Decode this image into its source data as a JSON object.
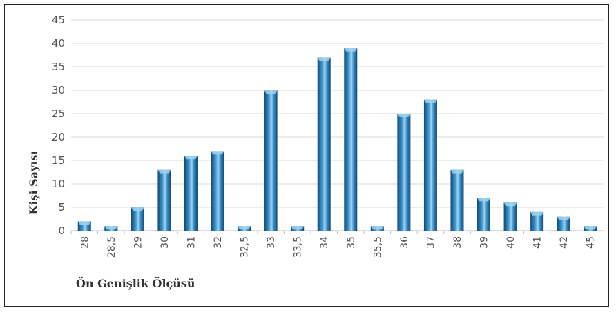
{
  "chart_data": {
    "type": "bar",
    "title": "",
    "xlabel": "Ön Genişlik Ölçüsü",
    "ylabel": "Kişi Sayısı",
    "ylim": [
      0,
      45
    ],
    "yticks": [
      0,
      5,
      10,
      15,
      20,
      25,
      30,
      35,
      40,
      45
    ],
    "grid": true,
    "legend": "none",
    "categories": [
      "28",
      "28,5",
      "29",
      "30",
      "31",
      "32",
      "32,5",
      "33",
      "33,5",
      "34",
      "35",
      "35,5",
      "36",
      "37",
      "38",
      "39",
      "40",
      "41",
      "42",
      "45"
    ],
    "values": [
      2,
      1,
      5,
      13,
      16,
      17,
      1,
      30,
      1,
      37,
      39,
      1,
      25,
      28,
      13,
      7,
      6,
      4,
      3,
      1
    ],
    "colors": {
      "bar_dark": "#14486f",
      "bar_mid": "#2f86c0",
      "bar_light": "#9fd3f2",
      "grid": "#d9d9d9"
    }
  }
}
